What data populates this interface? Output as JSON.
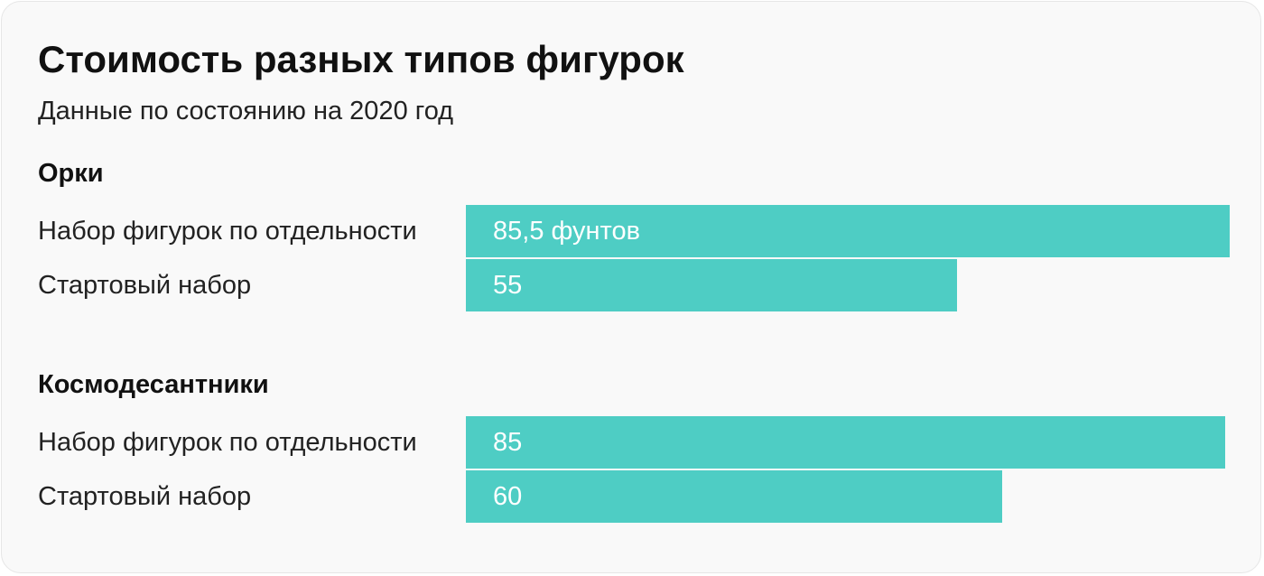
{
  "chart_data": {
    "type": "bar",
    "orientation": "horizontal",
    "title": "Стоимость разных типов фигурок",
    "subtitle": "Данные по состоянию на 2020 год",
    "groups": [
      {
        "name": "Орки",
        "items": [
          {
            "label": "Набор фигурок по отдельности",
            "value": 85.5,
            "value_label": "85,5 фунтов"
          },
          {
            "label": "Стартовый набор",
            "value": 55,
            "value_label": "55"
          }
        ]
      },
      {
        "name": "Космодесантники",
        "items": [
          {
            "label": "Набор фигурок по отдельности",
            "value": 85,
            "value_label": "85"
          },
          {
            "label": "Стартовый набор",
            "value": 60,
            "value_label": "60"
          }
        ]
      }
    ],
    "xlim": [
      0,
      85.5
    ],
    "bar_color": "#4ecdc4",
    "grid": false,
    "legend": "none"
  }
}
